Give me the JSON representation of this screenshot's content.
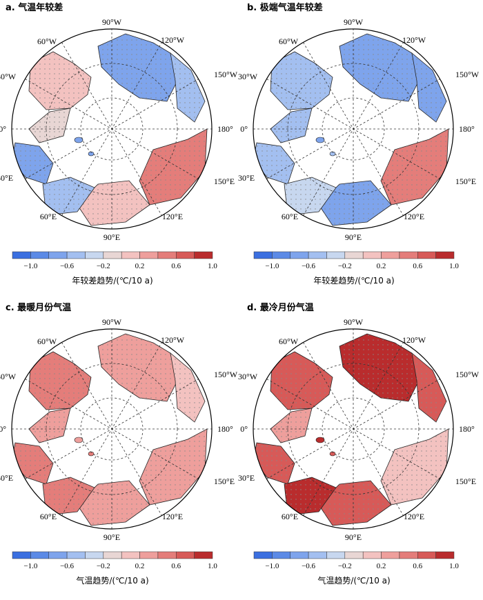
{
  "palette": [
    "#3b6fe0",
    "#5b8ae6",
    "#7ea4ec",
    "#a3bff0",
    "#c7d7ef",
    "#e8d6d4",
    "#f3c2c0",
    "#ee9f9c",
    "#e47d7a",
    "#d75a58",
    "#b92c2d"
  ],
  "lon_labels": {
    "w90": "90°W",
    "w120": "120°W",
    "w150": "150°W",
    "e180": "180°",
    "e150": "150°E",
    "e120": "120°E",
    "e90": "90°E",
    "e60": "60°E",
    "e30": "30°E",
    "zero": "0°",
    "w30": "30°W",
    "w60": "60°W"
  },
  "colorbar_ticks": [
    "−1.0",
    "−0.6",
    "−0.2",
    "0.2",
    "0.6",
    "1.0"
  ],
  "panels": [
    {
      "id": "a",
      "title": "a. 气温年较差",
      "colorbar_title": "年较差趋势/(℃/10 a)",
      "regions": {
        "greenland": 6,
        "canada": 2,
        "alaska": 3,
        "siberia_e": 8,
        "siberia_w": 6,
        "europe": 2,
        "ocean_atl": 5,
        "scand": 3
      }
    },
    {
      "id": "b",
      "title": "b. 极端气温年较差",
      "colorbar_title": "年较差趋势/(℃/10 a)",
      "regions": {
        "greenland": 3,
        "canada": 2,
        "alaska": 2,
        "siberia_e": 8,
        "siberia_w": 2,
        "europe": 3,
        "ocean_atl": 3,
        "scand": 4
      }
    },
    {
      "id": "c",
      "title": "c. 最暖月份气温",
      "colorbar_title": "气温趋势/(℃/10 a)",
      "regions": {
        "greenland": 8,
        "canada": 7,
        "alaska": 6,
        "siberia_e": 7,
        "siberia_w": 7,
        "europe": 8,
        "ocean_atl": 7,
        "scand": 8
      }
    },
    {
      "id": "d",
      "title": "d. 最冷月份气温",
      "colorbar_title": "气温趋势/(℃/10 a)",
      "regions": {
        "greenland": 9,
        "canada": 10,
        "alaska": 9,
        "siberia_e": 6,
        "siberia_w": 9,
        "europe": 9,
        "ocean_atl": 7,
        "scand": 10
      }
    }
  ]
}
